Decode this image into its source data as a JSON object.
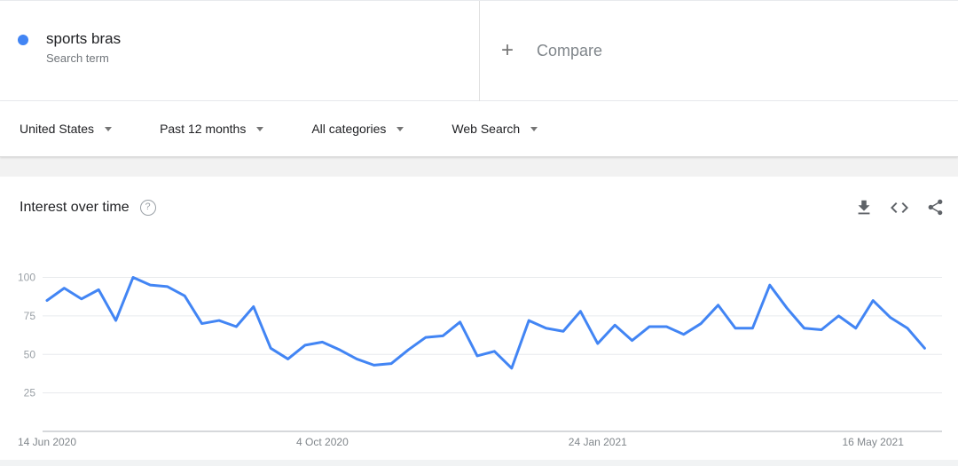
{
  "header": {
    "term": "sports bras",
    "term_type": "Search term",
    "term_color": "#4285f4",
    "compare_plus": "+",
    "compare_label": "Compare"
  },
  "filters": [
    {
      "label": "United States"
    },
    {
      "label": "Past 12 months"
    },
    {
      "label": "All categories"
    },
    {
      "label": "Web Search"
    }
  ],
  "widget": {
    "title": "Interest over time",
    "help_glyph": "?",
    "icons": [
      "download-icon",
      "embed-icon",
      "share-icon"
    ]
  },
  "chart_data": {
    "type": "line",
    "title": "Interest over time",
    "series_name": "sports bras",
    "line_color": "#4285f4",
    "grid": true,
    "legend": false,
    "ylim": [
      0,
      100
    ],
    "y_ticks": [
      25,
      50,
      75,
      100
    ],
    "x_tick_labels": [
      {
        "index": 0,
        "label": "14 Jun 2020"
      },
      {
        "index": 16,
        "label": "4 Oct 2020"
      },
      {
        "index": 32,
        "label": "24 Jan 2021"
      },
      {
        "index": 48,
        "label": "16 May 2021"
      }
    ],
    "values": [
      85,
      93,
      86,
      92,
      72,
      100,
      95,
      94,
      88,
      70,
      72,
      68,
      81,
      54,
      47,
      56,
      58,
      53,
      47,
      43,
      44,
      53,
      61,
      62,
      71,
      49,
      52,
      41,
      72,
      67,
      65,
      78,
      57,
      69,
      59,
      68,
      68,
      63,
      70,
      82,
      67,
      67,
      95,
      80,
      67,
      66,
      75,
      67,
      85,
      74,
      67,
      54
    ]
  }
}
